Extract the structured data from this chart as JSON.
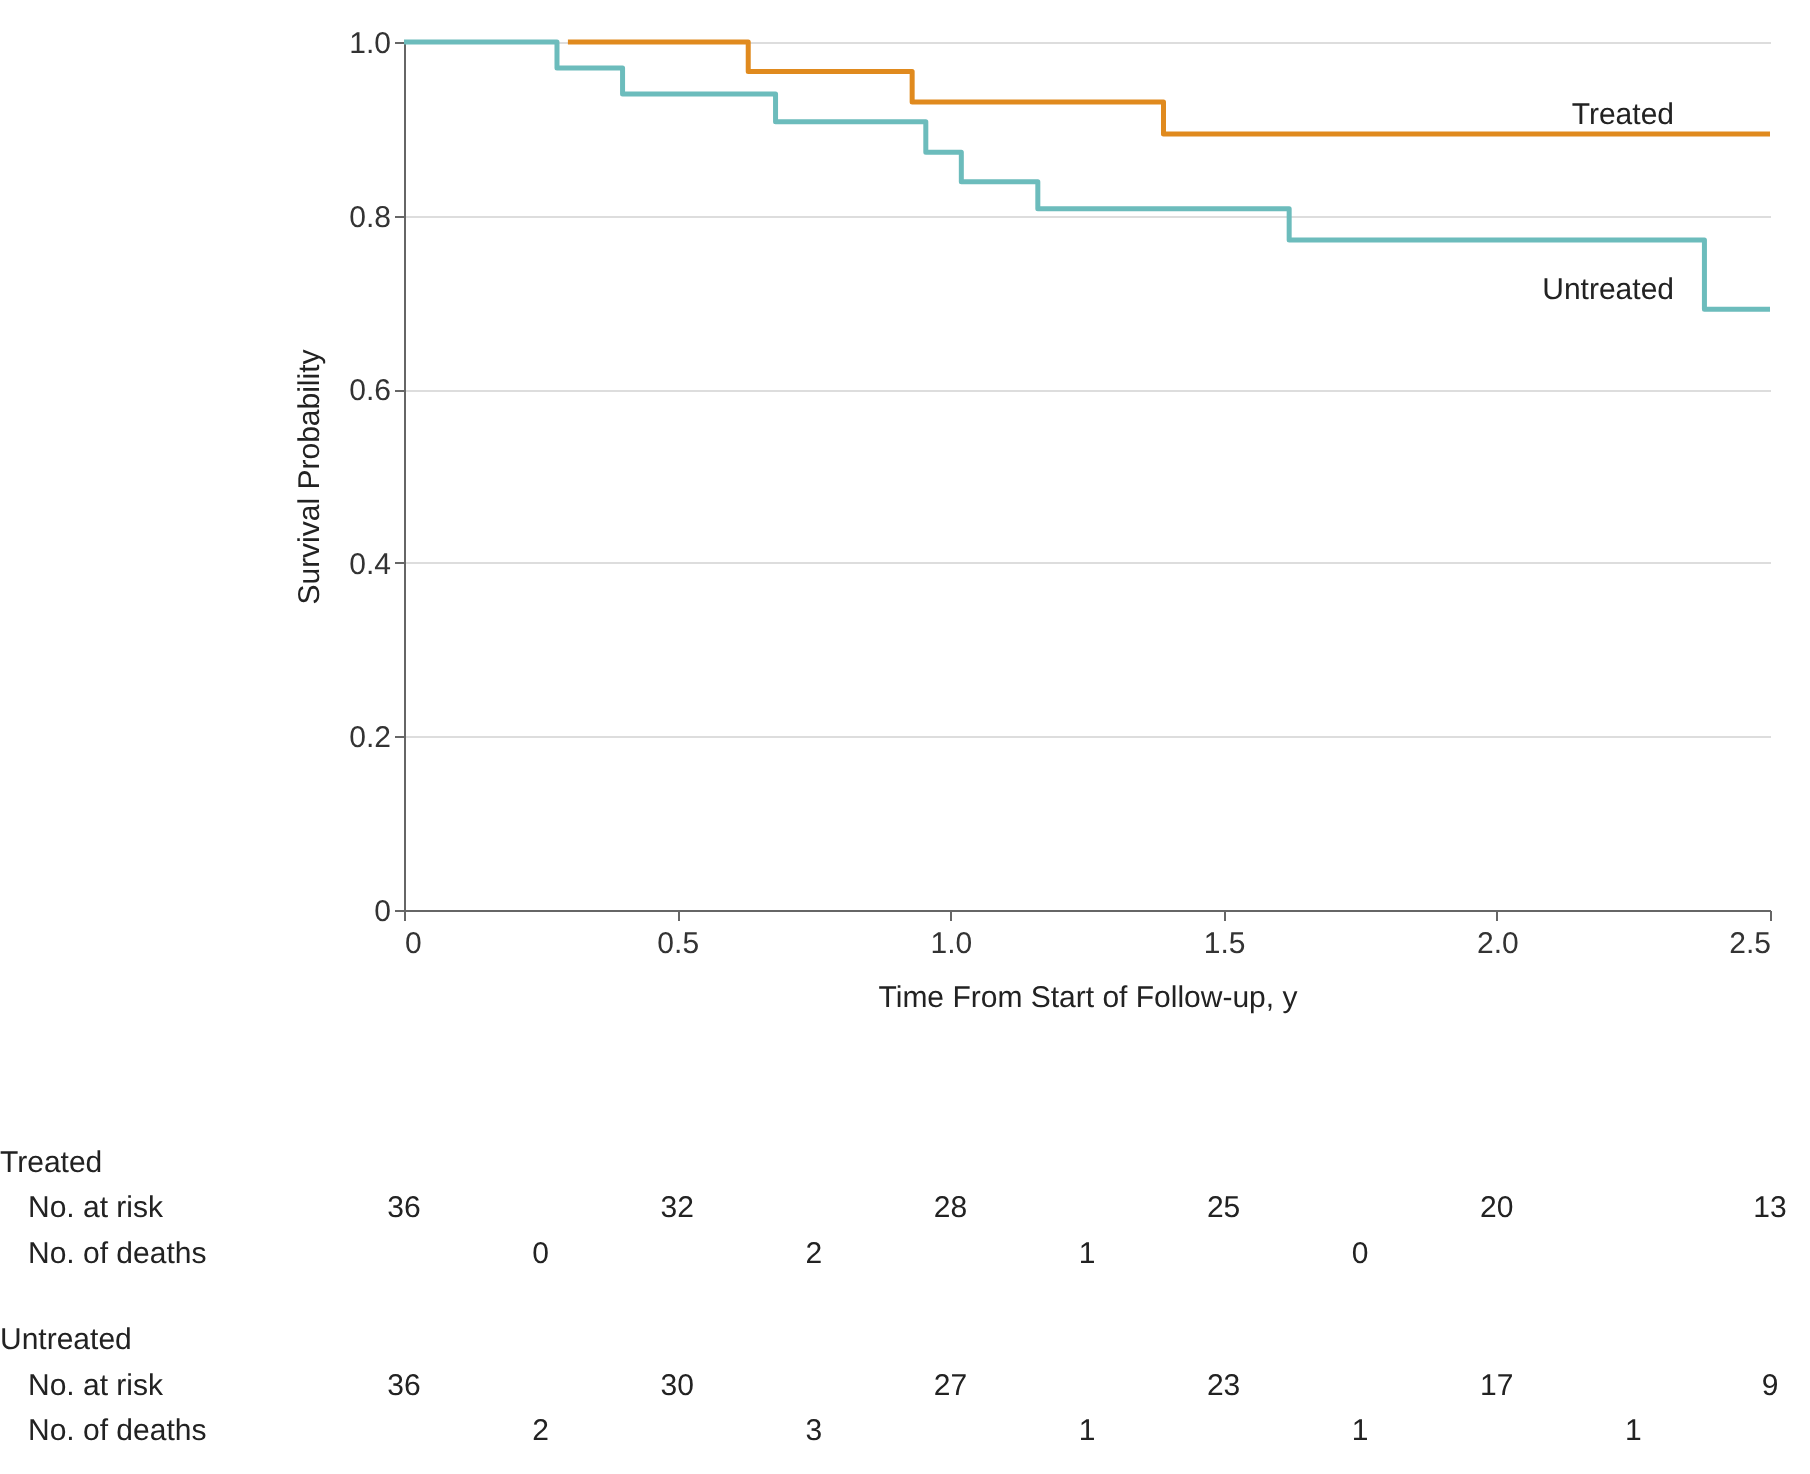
{
  "chart_data": {
    "type": "step",
    "xlabel": "Time From Start of Follow-up, y",
    "ylabel": "Survival Probability",
    "xlim": [
      0,
      2.5
    ],
    "xticks": [
      0,
      0.5,
      {
        "value": 1,
        "label": "1.0"
      },
      1.5,
      {
        "value": 2,
        "label": "2.0"
      },
      2.5
    ],
    "ylim": [
      0,
      1
    ],
    "yticks": [
      0,
      0.2,
      0.4,
      0.6,
      0.8,
      {
        "value": 1,
        "label": "1.0"
      }
    ],
    "grid": "y",
    "legend": false,
    "line_style": "solid",
    "marker": "none",
    "series": [
      {
        "name": "Treated",
        "color": "#e08a1e",
        "x": [
          0.3,
          0.63,
          0.93,
          1.39,
          2.5
        ],
        "values": [
          1,
          0.966,
          0.931,
          0.894,
          0.894
        ]
      },
      {
        "name": "Untreated",
        "color": "#6cbcbc",
        "x": [
          0,
          0.28,
          0.4,
          0.68,
          0.955,
          1.02,
          1.16,
          1.62,
          2.38,
          2.5
        ],
        "values": [
          1,
          0.97,
          0.94,
          0.908,
          0.873,
          0.839,
          0.808,
          0.772,
          0.692,
          0.692
        ]
      }
    ],
    "annotations": [
      "Treated",
      "No. at risk",
      "36",
      "32",
      "28",
      "25",
      "20",
      "13",
      "No. of deaths",
      "0",
      "2",
      "1",
      "0",
      "Untreated",
      "No. at risk",
      "36",
      "30",
      "27",
      "23",
      "17",
      "9",
      "No. of deaths",
      "2",
      "3",
      "1",
      "1",
      "1"
    ]
  }
}
